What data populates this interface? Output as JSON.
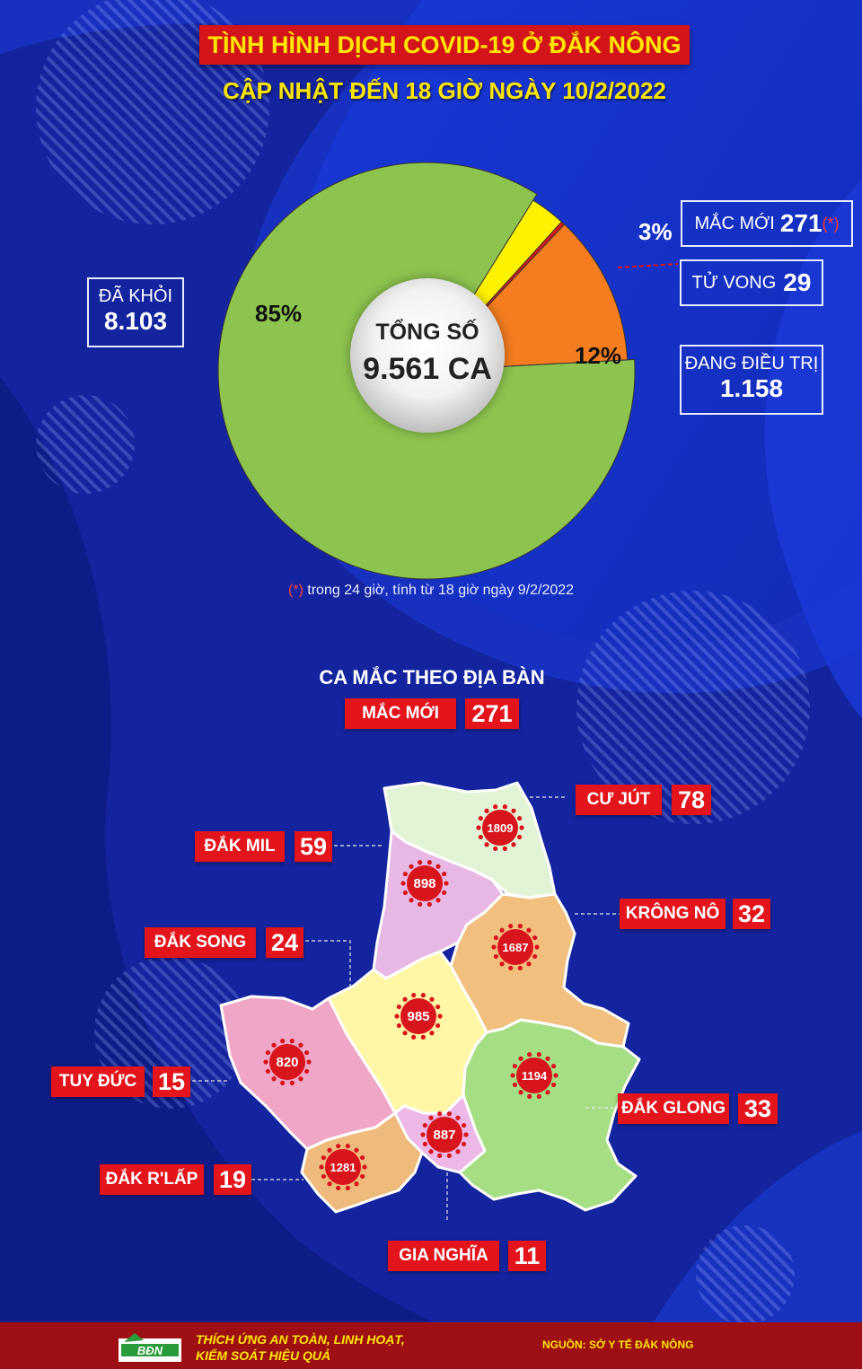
{
  "header": {
    "title": "TÌNH HÌNH DỊCH COVID-19 Ở ĐẮK NÔNG",
    "subtitle": "CẬP NHẬT ĐẾN 18 GIỜ NGÀY 10/2/2022"
  },
  "summary": {
    "center_line1": "TỔNG SỐ",
    "center_line2": "9.561 CA",
    "recovered": {
      "label": "ĐÃ KHỎI",
      "value": "8.103",
      "percent": "85%",
      "color": "#8dc44f"
    },
    "treating": {
      "label": "ĐANG ĐIỀU TRỊ",
      "value": "1.158",
      "percent": "12%",
      "color": "#f57d20"
    },
    "new_cases": {
      "label": "MẮC MỚI",
      "value": "271",
      "marker": "(*)",
      "percent": "3%",
      "color": "#fff200"
    },
    "deaths": {
      "label": "TỬ VONG",
      "value": "29",
      "color": "#e0141a"
    }
  },
  "chart_data": {
    "type": "pie",
    "slices": [
      {
        "name": "ĐÃ KHỎI",
        "value": 8103
      },
      {
        "name": "ĐANG ĐIỀU TRỊ",
        "value": 1158
      },
      {
        "name": "MẮC MỚI",
        "value": 271
      },
      {
        "name": "TỬ VONG",
        "value": 29
      }
    ],
    "labels": [
      "85%",
      "12%",
      "3%"
    ]
  },
  "note": {
    "star": "(*)",
    "text": " trong 24 giờ, tính từ 18 giờ ngày 9/2/2022"
  },
  "districts_section": {
    "title": "CA MẮC THEO ĐỊA BÀN",
    "new_label": "MẮC MỚI",
    "new_value": "271",
    "districts": [
      {
        "name": "CƯ JÚT",
        "new": "78",
        "total": "1809"
      },
      {
        "name": "ĐẮK MIL",
        "new": "59",
        "total": "898"
      },
      {
        "name": "KRÔNG NÔ",
        "new": "32",
        "total": "1687"
      },
      {
        "name": "ĐẮK SONG",
        "new": "24",
        "total": "985"
      },
      {
        "name": "TUY ĐỨC",
        "new": "15",
        "total": "820"
      },
      {
        "name": "ĐẮK GLONG",
        "new": "33",
        "total": "1194"
      },
      {
        "name": "ĐẮK R'LẤP",
        "new": "19",
        "total": "1281"
      },
      {
        "name": "GIA NGHĨA",
        "new": "11",
        "total": "887"
      }
    ]
  },
  "footer": {
    "logo_text": "BĐN",
    "slogan_line1": "THÍCH ỨNG AN TOÀN, LINH HOẠT,",
    "slogan_line2": "KIỂM SOÁT HIỆU QUẢ",
    "source": "NGUỒN: SỞ Y TẾ ĐẮK NÔNG"
  }
}
